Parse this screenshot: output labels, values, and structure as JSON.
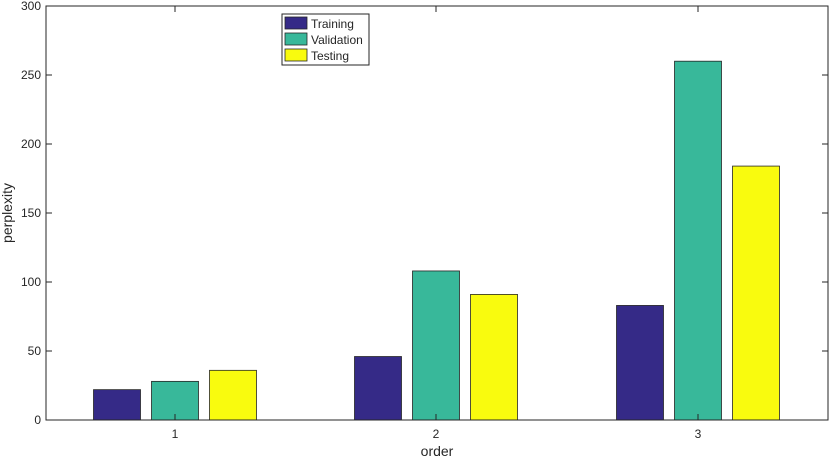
{
  "chart_data": {
    "type": "bar",
    "categories": [
      "1",
      "2",
      "3"
    ],
    "series": [
      {
        "name": "Training",
        "values": [
          22,
          46,
          83
        ],
        "color": "#352a87"
      },
      {
        "name": "Validation",
        "values": [
          28,
          108,
          260
        ],
        "color": "#38b89a"
      },
      {
        "name": "Testing",
        "values": [
          36,
          91,
          184
        ],
        "color": "#f9fb0e"
      }
    ],
    "title": "",
    "xlabel": "order",
    "ylabel": "perplexity",
    "ylim": [
      0,
      300
    ],
    "yticks": [
      "0",
      "50",
      "100",
      "150",
      "200",
      "250",
      "300"
    ],
    "grid": false,
    "legend_position": "top-left"
  }
}
